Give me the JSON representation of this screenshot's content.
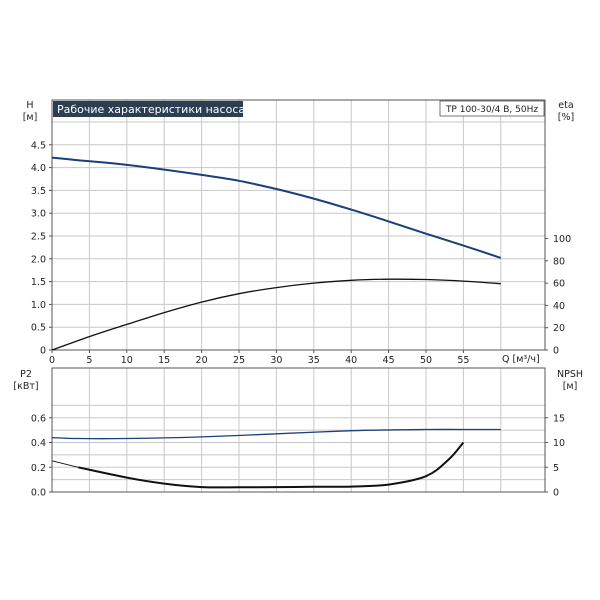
{
  "chart_data": [
    {
      "type": "line",
      "title": "Рабочие характеристики насоса",
      "subtitle": "TP 100-30/4 B, 50Hz",
      "x_tick_labels": [
        "0",
        "5",
        "10",
        "15",
        "20",
        "25",
        "30",
        "35",
        "40",
        "45",
        "50",
        "55"
      ],
      "xlabel": "Q [м³/ч]",
      "xlim": [
        0,
        60
      ],
      "ylabel_left": [
        "H",
        "[м]"
      ],
      "ylim_left": [
        0,
        5.0
      ],
      "yticks_left": [
        "0",
        "0.5",
        "1.0",
        "1.5",
        "2.0",
        "2.5",
        "3.0",
        "3.5",
        "4.0",
        "4.5"
      ],
      "ylabel_right": [
        "eta",
        "[%]"
      ],
      "ylim_right": [
        0,
        113.6
      ],
      "yticks_right": [
        "0",
        "20",
        "40",
        "60",
        "80",
        "100"
      ],
      "grid": true,
      "series": [
        {
          "axis": "left",
          "color": "#1a3f7a",
          "x": [
            0,
            3.5,
            10,
            20,
            25,
            30,
            35,
            40,
            45,
            50,
            55,
            60
          ],
          "y": [
            4.22,
            4.16,
            4.06,
            3.84,
            3.71,
            3.53,
            3.32,
            3.08,
            2.82,
            2.55,
            2.29,
            2.02
          ]
        },
        {
          "axis": "right",
          "color": "#111111",
          "x": [
            0,
            5,
            10,
            15,
            20,
            25,
            30,
            35,
            40,
            45,
            50,
            55,
            60
          ],
          "y": [
            0,
            12,
            23,
            33.5,
            43,
            50.5,
            56,
            60,
            62.5,
            63.5,
            63.2,
            61.8,
            59.5
          ]
        }
      ]
    },
    {
      "type": "line",
      "x_tick_labels": [],
      "xlim": [
        0,
        65
      ],
      "ylabel_left": [
        "P2",
        "[кВт]"
      ],
      "ylim_left": [
        0,
        0.9
      ],
      "yticks_left": [
        "0.0",
        "0.2",
        "0.4",
        "0.6"
      ],
      "ylabel_right": [
        "NPSH",
        "[м]"
      ],
      "ylim_right": [
        0,
        20.0
      ],
      "yticks_right": [
        "0",
        "5",
        "10",
        "15"
      ],
      "grid": true,
      "series": [
        {
          "axis": "left",
          "color": "#1a3f7a",
          "x": [
            0,
            3.5,
            10,
            20,
            30,
            40,
            50,
            55,
            60
          ],
          "y": [
            0.44,
            0.432,
            0.432,
            0.445,
            0.47,
            0.495,
            0.505,
            0.505,
            0.505
          ]
        },
        {
          "axis": "right",
          "color": "#111111",
          "thin_start": true,
          "x": [
            0,
            3.5,
            10,
            15,
            20,
            25,
            30,
            35,
            40,
            45,
            50,
            53,
            55
          ],
          "y": [
            6.3,
            5.0,
            2.9,
            1.7,
            1.0,
            0.95,
            1.0,
            1.05,
            1.1,
            1.5,
            3.2,
            6.5,
            10.0
          ]
        }
      ]
    }
  ]
}
